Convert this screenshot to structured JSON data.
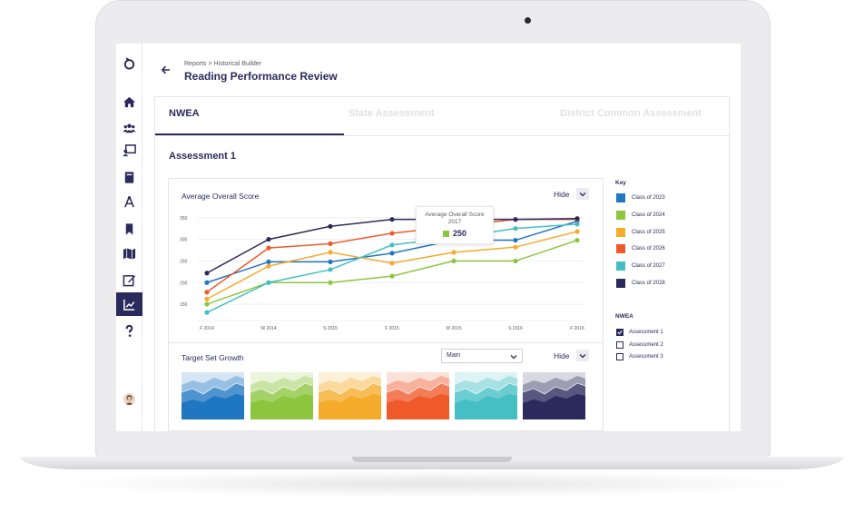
{
  "header": {
    "breadcrumb": "Reports > Historical Builder",
    "title": "Reading Performance Review"
  },
  "tabs": [
    {
      "label": "NWEA",
      "active": true
    },
    {
      "label": "State Assessment",
      "active": false
    },
    {
      "label": "District Common Assessment",
      "active": false
    }
  ],
  "section_title": "Assessment 1",
  "chart_panel": {
    "title": "Average Overall Score",
    "hide_label": "Hide",
    "tooltip": {
      "label_line1": "Average Overall Score",
      "label_line2": "2017",
      "value": "250"
    }
  },
  "growth_panel": {
    "title": "Target Set Growth",
    "select_value": "Main",
    "hide_label": "Hide"
  },
  "key": {
    "title": "Key",
    "items": [
      {
        "label": "Class of 2023",
        "color": "#1f77c2"
      },
      {
        "label": "Class of 2024",
        "color": "#8cc63f"
      },
      {
        "label": "Class of 2025",
        "color": "#f5ab2b"
      },
      {
        "label": "Class of 2026",
        "color": "#ef5a2a"
      },
      {
        "label": "Class of 2027",
        "color": "#45bfc4"
      },
      {
        "label": "Class of 2028",
        "color": "#2b2a5c"
      }
    ]
  },
  "nwea_filter": {
    "title": "NWEA",
    "items": [
      {
        "label": "Assessment 1",
        "checked": true
      },
      {
        "label": "Assessment 2",
        "checked": false
      },
      {
        "label": "Assessment 3",
        "checked": false
      }
    ]
  },
  "chart_data": {
    "type": "line",
    "title": "Average Overall Score",
    "categories": [
      "F 2014",
      "W 2014",
      "S 2015",
      "F 2015",
      "W 2015",
      "S 2016",
      "F 2016"
    ],
    "ylim": [
      125,
      360
    ],
    "yticks": [
      "150",
      "200",
      "250",
      "300",
      "350"
    ],
    "ytick_values": [
      150,
      200,
      250,
      300,
      350
    ],
    "grid": true,
    "series": [
      {
        "name": "Class of 2023",
        "color": "#1f77c2",
        "values": [
          200,
          248,
          248,
          268,
          298,
          298,
          342
        ]
      },
      {
        "name": "Class of 2024",
        "color": "#8cc63f",
        "values": [
          150,
          200,
          200,
          215,
          250,
          250,
          298
        ]
      },
      {
        "name": "Class of 2025",
        "color": "#f5ab2b",
        "values": [
          162,
          238,
          270,
          245,
          270,
          282,
          318
        ]
      },
      {
        "name": "Class of 2026",
        "color": "#ef5a2a",
        "values": [
          178,
          280,
          290,
          314,
          330,
          346,
          346
        ]
      },
      {
        "name": "Class of 2027",
        "color": "#45bfc4",
        "values": [
          131,
          200,
          230,
          287,
          304,
          325,
          335
        ]
      },
      {
        "name": "Class of 2028",
        "color": "#2b2a5c",
        "values": [
          222,
          300,
          330,
          346,
          346,
          346,
          348
        ]
      }
    ]
  }
}
